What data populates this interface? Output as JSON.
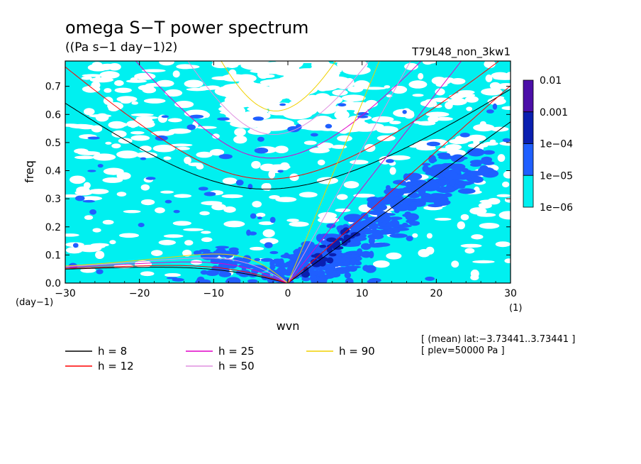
{
  "chart_data": {
    "type": "heatmap",
    "title": "omega S−T power spectrum",
    "subtitle": "((Pa s−1 day−1)2)",
    "run_name": "T79L48_non_3kw1",
    "xlabel": "wvn",
    "ylabel": "freq",
    "x_unit": "(1)",
    "y_unit": "(day−1)",
    "xlim": [
      -30,
      30
    ],
    "ylim": [
      0,
      0.79
    ],
    "x_ticks": [
      -30,
      -20,
      -10,
      0,
      10,
      20,
      30
    ],
    "x_tick_labels": [
      "−30",
      "−20",
      "−10",
      "0",
      "10",
      "20",
      "30"
    ],
    "y_ticks": [
      0,
      0.1,
      0.2,
      0.3,
      0.4,
      0.5,
      0.6,
      0.7
    ],
    "y_tick_labels": [
      "0.0",
      "0.1",
      "0.2",
      "0.3",
      "0.4",
      "0.5",
      "0.6",
      "0.7"
    ],
    "colorbar": {
      "levels": [
        "0.01",
        "0.001",
        "1e−04",
        "1e−05",
        "1e−06"
      ],
      "colors": [
        "#4b0fa8",
        "#0a1fb0",
        "#1f5fff",
        "#00f0f0"
      ],
      "scale": "log"
    },
    "field_colors": {
      "below": "#ffffff",
      "level1": "#00f0f0",
      "level2": "#1f5fff",
      "level3": "#0a1fb0"
    },
    "dispersion_curves": [
      {
        "label": "h =  8",
        "h": 8,
        "color": "#000000"
      },
      {
        "label": "h = 12",
        "h": 12,
        "color": "#ff0000"
      },
      {
        "label": "h = 25",
        "h": 25,
        "color": "#e000c8"
      },
      {
        "label": "h = 50",
        "h": 50,
        "color": "#e090e0"
      },
      {
        "label": "h = 90",
        "h": 90,
        "color": "#f0d000"
      }
    ],
    "annotations": [
      "[ (mean) lat:−3.73441..3.73441 ]",
      "[ plev=50000 Pa ]"
    ]
  }
}
